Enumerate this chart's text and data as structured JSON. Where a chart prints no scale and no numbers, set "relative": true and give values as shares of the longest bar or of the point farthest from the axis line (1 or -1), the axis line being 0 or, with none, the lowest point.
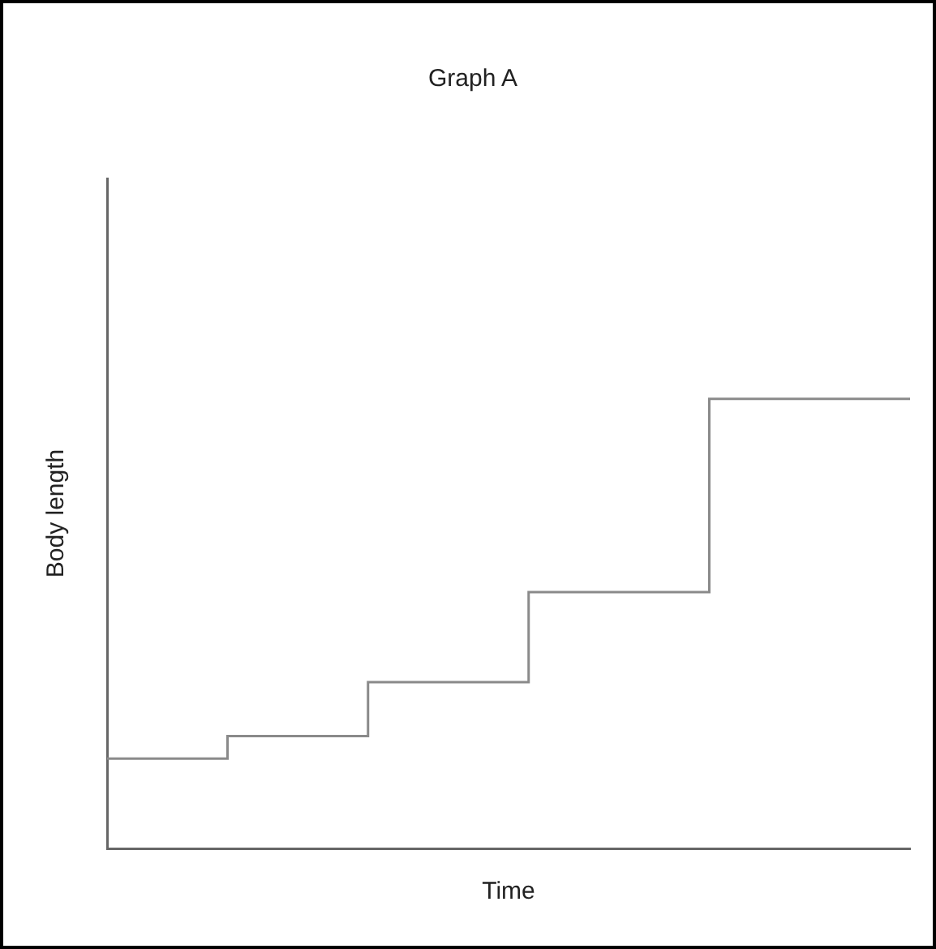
{
  "chart_data": {
    "type": "step",
    "title": "Graph A",
    "xlabel": "Time",
    "ylabel": "Body length",
    "relative": true,
    "categories": [
      null,
      null,
      null,
      null,
      null,
      null,
      null,
      null,
      null,
      null,
      null,
      null,
      null,
      null,
      null,
      null,
      null,
      null,
      null,
      null,
      null,
      null,
      null,
      null,
      null,
      null,
      null,
      null,
      null,
      null,
      null,
      null,
      null,
      null,
      null,
      null,
      null,
      null,
      null,
      null,
      null
    ],
    "series": [
      {
        "color": "#8a8a8a",
        "values": [
          0.2,
          0.2,
          0.2,
          0.2,
          0.2,
          0.2,
          0.25,
          0.25,
          0.25,
          0.25,
          0.25,
          0.25,
          0.25,
          0.37,
          0.37,
          0.37,
          0.37,
          0.37,
          0.37,
          0.37,
          0.37,
          0.57,
          0.57,
          0.57,
          0.57,
          0.57,
          0.57,
          0.57,
          0.57,
          0.57,
          1,
          1,
          1,
          1,
          1,
          1,
          1,
          1,
          1,
          1,
          1
        ]
      }
    ]
  }
}
